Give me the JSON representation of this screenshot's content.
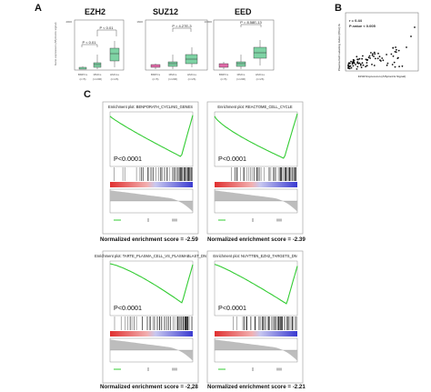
{
  "panels": {
    "A": "A",
    "B": "B",
    "C": "C"
  },
  "genes": [
    {
      "name": "EZH2",
      "pval": "P < 0.01",
      "ylabel": "Gene expression (Affymetrix signal)",
      "groups": [
        "BMPCs",
        "MMCs",
        "HMCLs"
      ],
      "ns": [
        "(n=5)",
        "(n=206)",
        "(n=26)"
      ],
      "ymax": "4000"
    },
    {
      "name": "SUZ12",
      "pval": "P = 4.27E-3",
      "groups": [
        "BMPCs",
        "MMCs",
        "HMCLs"
      ],
      "ns": [
        "(n=5)",
        "(n=206)",
        "(n=26)"
      ],
      "ymax": "1600"
    },
    {
      "name": "EED",
      "pval": "P = 8.58E-13",
      "groups": [
        "BMPCs",
        "MMCs",
        "HMCLs"
      ],
      "ns": [
        "(n=5)",
        "(n=206)",
        "(n=26)"
      ],
      "ymax": "10000"
    }
  ],
  "scatter": {
    "r": "r = 0.44",
    "pvalue": "P-value < 0.005",
    "xlabel": "EZH2 Expression (Affymetrix Signal)",
    "ylabel": "Plasma Cell Labeling Index (PCLI) %"
  },
  "gsea": [
    {
      "title": "Enrichment plot: BENPORATH_CYCLING_GENES",
      "p": "P<0.0001",
      "nes": "Normalized enrichment score = -2.59"
    },
    {
      "title": "Enrichment plot: REACTOME_CELL_CYCLE",
      "p": "P<0.0001",
      "nes": "Normalized enrichment score = -2.39"
    },
    {
      "title": "Enrichment plot: TARTE_PLASMA_CELL_VS_PLASMABLAST_DN",
      "p": "P<0.0001",
      "nes": "Normalized enrichment score = -2,28"
    },
    {
      "title": "Enrichment plot: NUYTTEN_EZH2_TARGETS_DN",
      "p": "P<0.0001",
      "nes": "Normalized enrichment score = -2.21"
    }
  ],
  "colors": {
    "box_low": "#7ed3a4",
    "box_pink": "#e06aa8",
    "curve": "#33cc33",
    "heat_red": "#e03030",
    "heat_blue": "#3a3ad0"
  }
}
